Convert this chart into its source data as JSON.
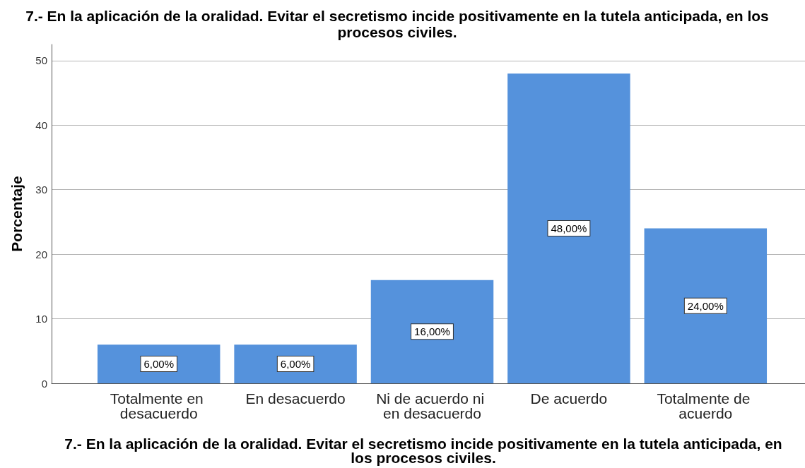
{
  "chart_data": {
    "type": "bar",
    "title": "7.- En la aplicación de la oralidad. Evitar el secretismo incide positivamente en la tutela anticipada, en los procesos civiles.",
    "xlabel": "7.- En la aplicación de la oralidad. Evitar el secretismo incide positivamente en la tutela anticipada, en los procesos civiles.",
    "ylabel": "Porcentaje",
    "categories": [
      "Totalmente en desacuerdo",
      "En desacuerdo",
      "Ni de acuerdo ni en desacuerdo",
      "De acuerdo",
      "Totalmente de acuerdo"
    ],
    "values": [
      6,
      6,
      16,
      48,
      24
    ],
    "value_labels": [
      "6,00%",
      "6,00%",
      "16,00%",
      "48,00%",
      "24,00%"
    ],
    "color": "#5592dc",
    "ylim": [
      0,
      52.5
    ],
    "yticks": [
      0,
      10,
      20,
      30,
      40,
      50
    ],
    "grid": "y"
  }
}
